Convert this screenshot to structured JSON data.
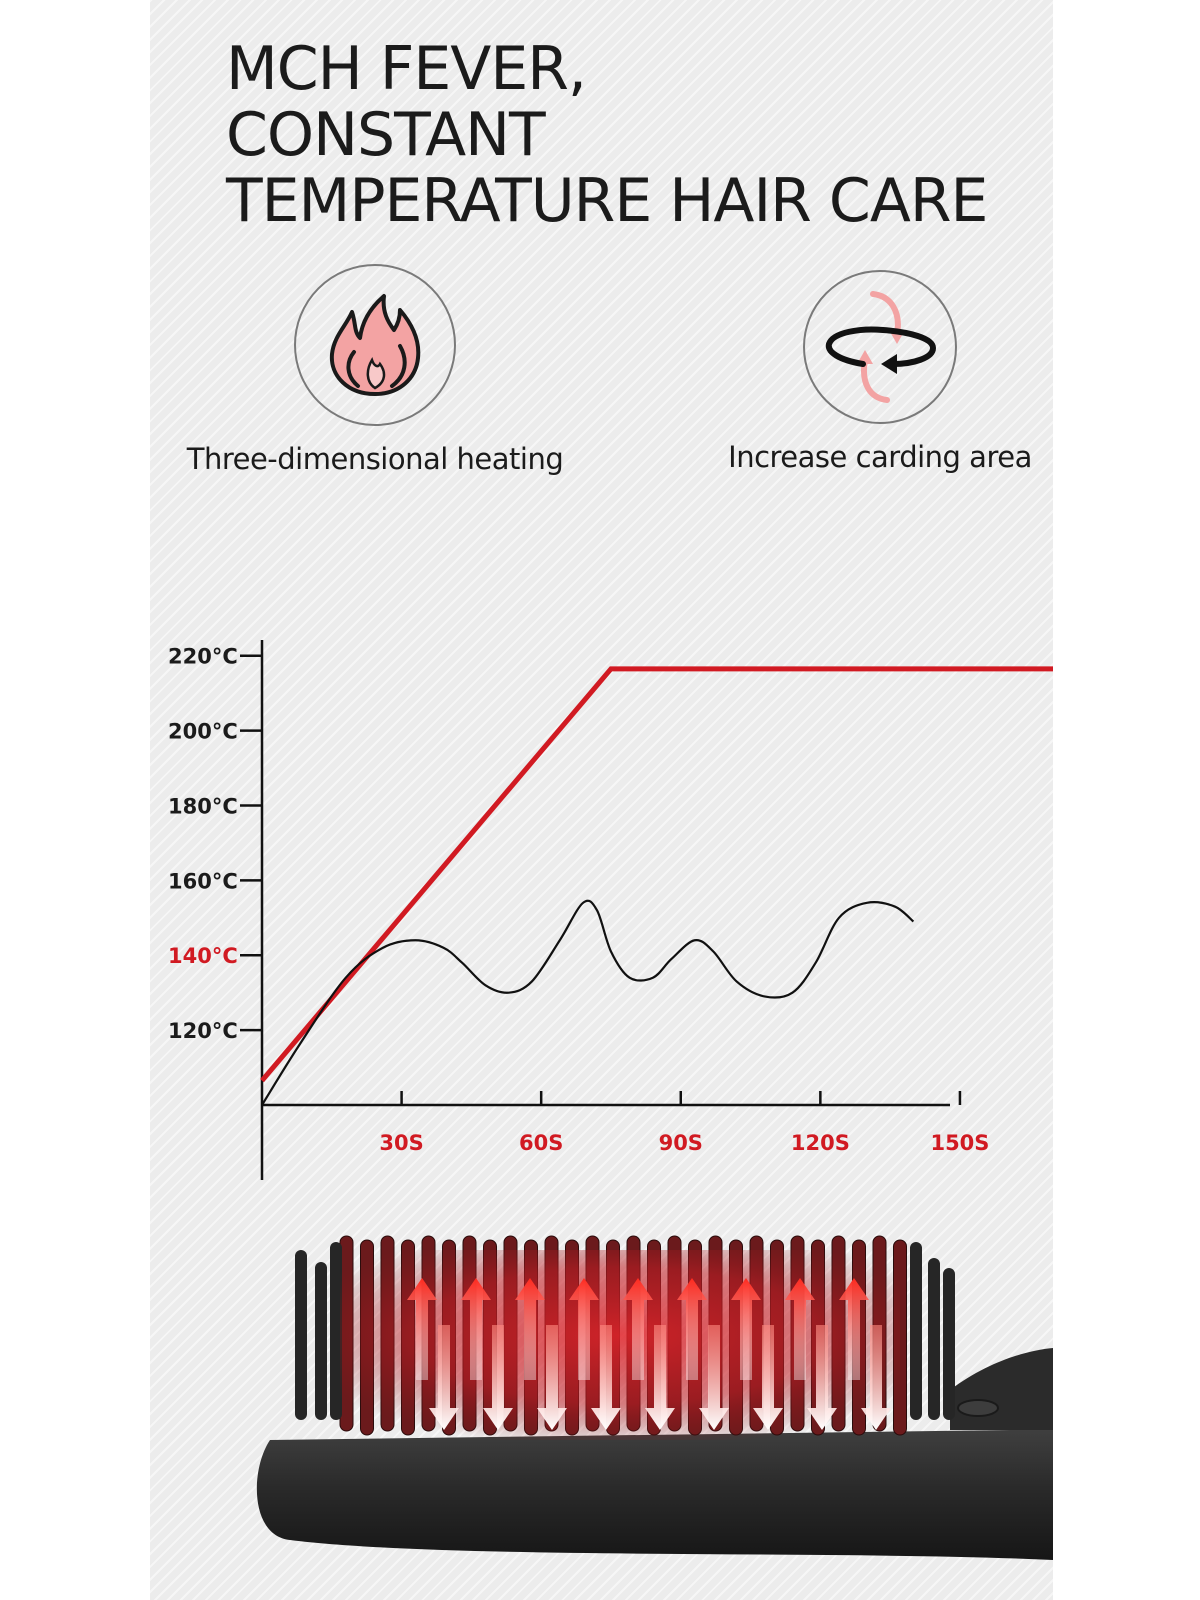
{
  "title": {
    "lines": [
      "MCH FEVER,",
      "CONSTANT",
      "TEMPERATURE HAIR CARE"
    ]
  },
  "features": [
    {
      "label": "Three-dimensional heating",
      "icon": "flame-icon"
    },
    {
      "label": "Increase carding area",
      "icon": "rotate-arrows-icon"
    }
  ],
  "colors": {
    "accent": "#d11a22",
    "text": "#1b1b1b",
    "background": "#ececec",
    "icon_pink": "#f3a3a3"
  },
  "chart_data": {
    "type": "line",
    "title": "",
    "xlabel": "",
    "ylabel": "",
    "x_ticks": [
      "30S",
      "60S",
      "90S",
      "120S",
      "150S"
    ],
    "x_tick_values": [
      30,
      60,
      90,
      120,
      150
    ],
    "y_ticks": [
      "220°C",
      "200°C",
      "180°C",
      "160°C",
      "140°C",
      "120°C"
    ],
    "y_tick_values": [
      220,
      200,
      180,
      160,
      140,
      120
    ],
    "highlight_tick": "140°C",
    "xlim": [
      0,
      170
    ],
    "ylim": [
      100,
      225
    ],
    "grid": false,
    "series": [
      {
        "color": "#d11a22",
        "points": [
          [
            0,
            106.5
          ],
          [
            75,
            216.5
          ],
          [
            170,
            216.5
          ]
        ]
      },
      {
        "color": "#111111",
        "points": [
          [
            0,
            100
          ],
          [
            8,
            116
          ],
          [
            18,
            134
          ],
          [
            26,
            142
          ],
          [
            33,
            144
          ],
          [
            39,
            142
          ],
          [
            43,
            138
          ],
          [
            48,
            132
          ],
          [
            53,
            130
          ],
          [
            58,
            133
          ],
          [
            64,
            144
          ],
          [
            69,
            154
          ],
          [
            72,
            152
          ],
          [
            75,
            141
          ],
          [
            79,
            134
          ],
          [
            84,
            134
          ],
          [
            88,
            139
          ],
          [
            93,
            144
          ],
          [
            97,
            141
          ],
          [
            102,
            133
          ],
          [
            108,
            129
          ],
          [
            114,
            130
          ],
          [
            119,
            138
          ],
          [
            124,
            150
          ],
          [
            130,
            154
          ],
          [
            136,
            153
          ],
          [
            140,
            149
          ]
        ]
      }
    ]
  },
  "product": {
    "name": "hair straightening brush",
    "glow_color": "#e2252b"
  }
}
